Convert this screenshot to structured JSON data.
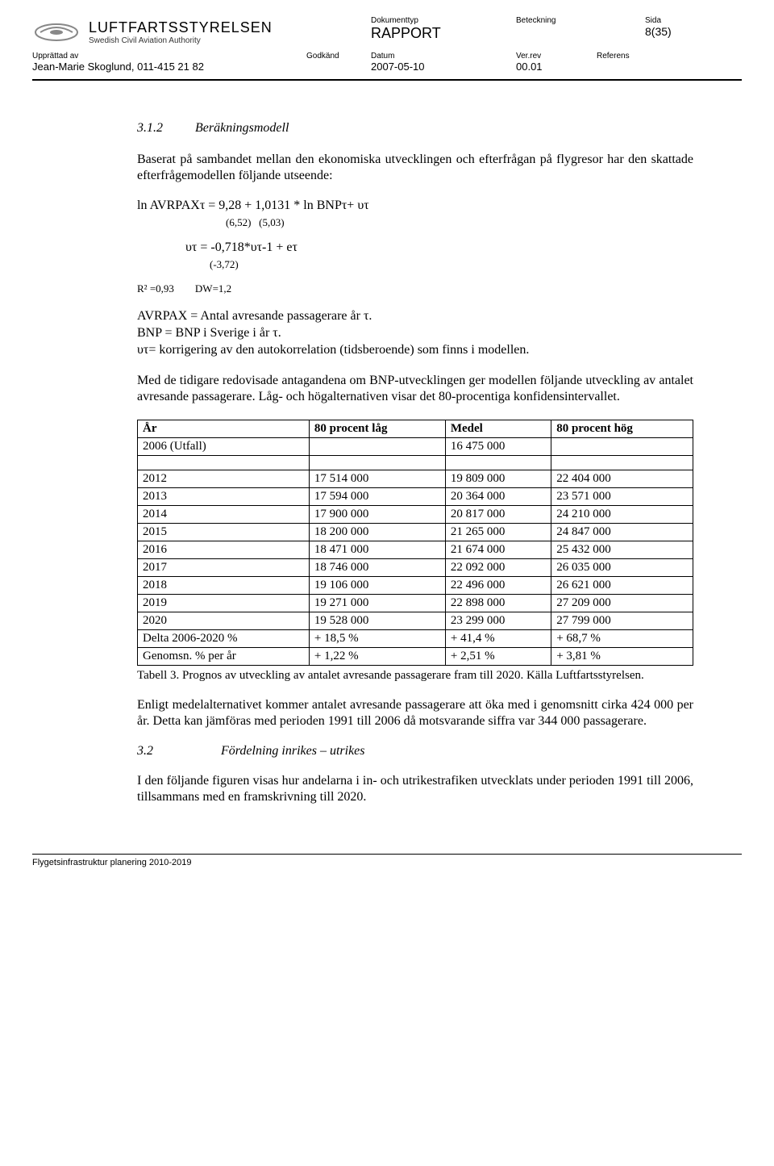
{
  "header": {
    "org_name": "LUFTFARTSSTYRELSEN",
    "org_sub": "Swedish Civil Aviation Authority",
    "dokumenttyp_label": "Dokumenttyp",
    "dokumenttyp_value": "RAPPORT",
    "beteckning_label": "Beteckning",
    "beteckning_value": "",
    "sida_label": "Sida",
    "sida_value": "8(35)",
    "upprattad_label": "Upprättad av",
    "upprattad_value": "Jean-Marie Skoglund, 011-415 21 82",
    "godkand_label": "Godkänd",
    "godkand_value": "",
    "datum_label": "Datum",
    "datum_value": "2007-05-10",
    "verrev_label": "Ver.rev",
    "verrev_value": "00.01",
    "referens_label": "Referens",
    "referens_value": ""
  },
  "section1": {
    "number": "3.1.2",
    "title": "Beräkningsmodell",
    "intro": "Baserat på sambandet mellan den ekonomiska utvecklingen och efterfrågan på flygresor har den skattade efterfrågemodellen följande utseende:",
    "formula_main": "ln AVRPAXτ = 9,28 + 1,0131 * ln BNPτ+ υτ",
    "formula_stats1": "(6,52)   (5,03)",
    "formula_err": "υτ = -0,718*υτ-1 + eτ",
    "formula_err_t": "(-3,72)",
    "formula_r2": "R² =0,93",
    "formula_dw": "DW=1,2",
    "def1": "AVRPAX = Antal avresande passagerare år τ.",
    "def2": "BNP = BNP i Sverige i år τ.",
    "def3": "υτ= korrigering av den autokorrelation (tidsberoende) som finns i modellen.",
    "para2": "Med de tidigare redovisade antagandena om BNP-utvecklingen ger modellen följande utveckling av antalet avresande passagerare. Låg- och högalternativen visar det 80-procentiga konfidensintervallet."
  },
  "table": {
    "headers": [
      "År",
      "80 procent låg",
      "Medel",
      "80 procent hög"
    ],
    "row_2006": [
      "2006 (Utfall)",
      "",
      "16 475 000",
      ""
    ],
    "rows": [
      [
        "2012",
        "17 514 000",
        "19 809 000",
        "22 404 000"
      ],
      [
        "2013",
        "17 594 000",
        "20 364 000",
        "23 571 000"
      ],
      [
        "2014",
        "17 900 000",
        "20 817 000",
        "24 210 000"
      ],
      [
        "2015",
        "18 200 000",
        "21 265 000",
        "24 847 000"
      ],
      [
        "2016",
        "18 471 000",
        "21 674 000",
        "25 432 000"
      ],
      [
        "2017",
        "18 746 000",
        "22 092 000",
        "26 035 000"
      ],
      [
        "2018",
        "19 106 000",
        "22 496 000",
        "26 621 000"
      ],
      [
        "2019",
        "19 271 000",
        "22 898 000",
        "27 209 000"
      ],
      [
        "2020",
        "19 528 000",
        "23 299 000",
        "27 799 000"
      ],
      [
        "Delta 2006-2020 %",
        "+ 18,5 %",
        "+ 41,4 %",
        "+ 68,7 %"
      ],
      [
        "Genomsn. % per år",
        "+ 1,22 %",
        "+ 2,51 %",
        "+ 3,81 %"
      ]
    ],
    "caption": "Tabell 3. Prognos av utveckling av antalet avresande passagerare fram till 2020. Källa Luftfartsstyrelsen."
  },
  "para_after_table": "Enligt medelalternativet kommer antalet avresande passagerare att öka med i genomsnitt cirka 424 000 per år. Detta kan jämföras med perioden 1991 till 2006 då motsvarande siffra var 344 000 passagerare.",
  "section2": {
    "number": "3.2",
    "title": "Fördelning inrikes – utrikes",
    "para": "I den följande figuren visas hur andelarna i in- och utrikestrafiken utvecklats under perioden 1991 till 2006, tillsammans med en framskrivning till 2020."
  },
  "footer": "Flygetsinfrastruktur planering 2010-2019"
}
